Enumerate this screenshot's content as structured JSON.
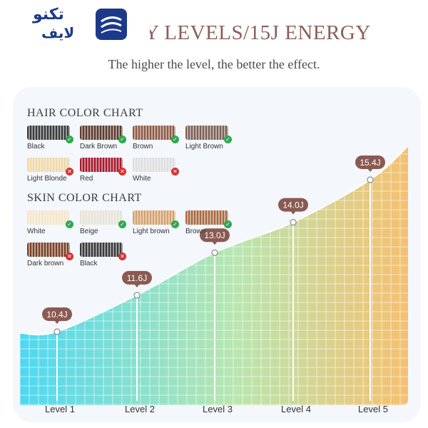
{
  "logo": {
    "line1": "تكنو",
    "line2": "لايف"
  },
  "header": {
    "title": "5 ENERGY LEVELS/15J ENERGY",
    "subtitle": "The higher the level, the better the effect."
  },
  "hair_chart": {
    "title": "HAIR COLOR CHART",
    "items": [
      {
        "label": "Black",
        "color": "#3a3a3a",
        "suitable": true
      },
      {
        "label": "Dark Brown",
        "color": "#5e3a2c",
        "suitable": true
      },
      {
        "label": "Brown",
        "color": "#8e5a44",
        "suitable": true
      },
      {
        "label": "Light Brown",
        "color": "#7d5f55",
        "suitable": true
      },
      {
        "label": "Light Blonde",
        "color": "#f0d8a6",
        "suitable": false
      },
      {
        "label": "Red",
        "color": "#a8182c",
        "suitable": false
      },
      {
        "label": "White",
        "color": "#dedede",
        "suitable": false
      }
    ]
  },
  "skin_chart": {
    "title": "SKIN COLOR CHART",
    "items": [
      {
        "label": "White",
        "color": "#f6e6c8",
        "suitable": true
      },
      {
        "label": "Beige",
        "color": "#e6e4d6",
        "suitable": true
      },
      {
        "label": "Light brown",
        "color": "#d6a06a",
        "suitable": true
      },
      {
        "label": "Brown",
        "color": "#a86a3e",
        "suitable": true
      },
      {
        "label": "Dark brown",
        "color": "#7a4226",
        "suitable": false
      },
      {
        "label": "Black",
        "color": "#3a3a3a",
        "suitable": false
      }
    ]
  },
  "chart_data": {
    "type": "area",
    "categories": [
      "Level 1",
      "Level 2",
      "Level 3",
      "Level 4",
      "Level 5"
    ],
    "values": [
      10.4,
      11.6,
      13.0,
      14.0,
      15.4
    ],
    "value_labels": [
      "10.4J",
      "11.6J",
      "13.0J",
      "14.0J",
      "15.4J"
    ],
    "unit": "J",
    "grid": true,
    "colors": {
      "start": "#4fd8f2",
      "mid": "#b8e6b0",
      "end": "#f6c070",
      "marker": "#8a5a52"
    }
  }
}
